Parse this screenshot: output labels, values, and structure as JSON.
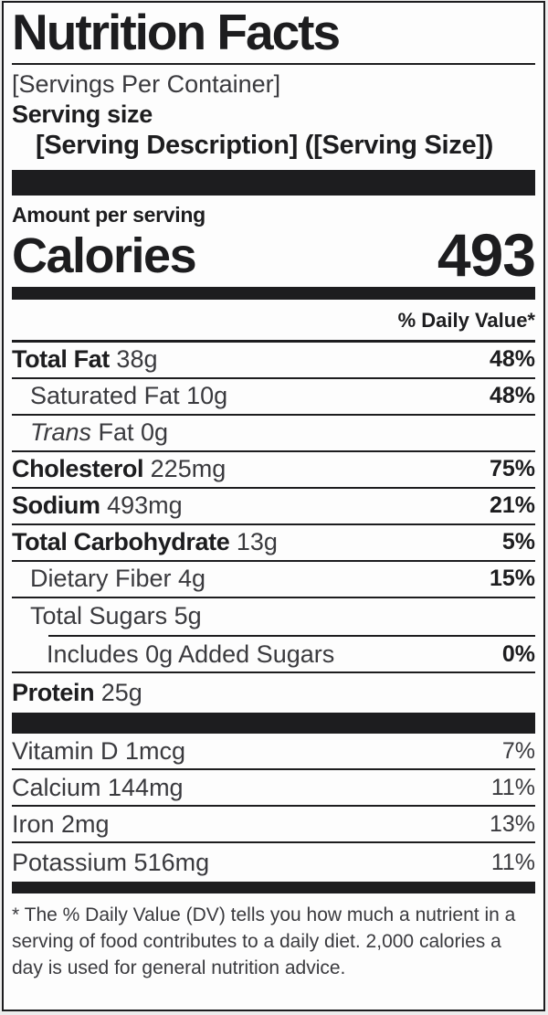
{
  "title": "Nutrition Facts",
  "serving": {
    "per_container": "[Servings Per Container]",
    "size_label": "Serving size",
    "description": "[Serving Description] ([Serving Size])"
  },
  "calories": {
    "section_label": "Amount per serving",
    "label": "Calories",
    "value": "493"
  },
  "daily_value_header": "% Daily Value*",
  "rows_main": [
    {
      "bold": "Total Fat",
      "regular": "38g",
      "dv": "48%",
      "indent": 0,
      "divider": "full"
    },
    {
      "regular": "Saturated Fat 10g",
      "dv": "48%",
      "indent": 1,
      "divider": "full"
    },
    {
      "italic": "Trans",
      "regular": " Fat 0g",
      "dv": "",
      "indent": 1,
      "divider": "full"
    },
    {
      "bold": "Cholesterol",
      "regular": "225mg",
      "dv": "75%",
      "indent": 0,
      "divider": "full"
    },
    {
      "bold": "Sodium",
      "regular": "493mg",
      "dv": "21%",
      "indent": 0,
      "divider": "full"
    },
    {
      "bold": "Total Carbohydrate",
      "regular": "13g",
      "dv": "5%",
      "indent": 0,
      "divider": "full"
    },
    {
      "regular": "Dietary Fiber 4g",
      "dv": "15%",
      "indent": 1,
      "divider": "full"
    },
    {
      "regular": "Total Sugars 5g",
      "dv": "",
      "indent": 1,
      "divider": "indent"
    },
    {
      "regular": "Includes 0g Added Sugars",
      "dv": "0%",
      "indent": 2,
      "divider": "full"
    },
    {
      "bold": "Protein",
      "regular": "25g",
      "dv": "",
      "indent": 0,
      "divider": "none"
    }
  ],
  "rows_micro": [
    {
      "regular": "Vitamin D 1mcg",
      "dv": "7%"
    },
    {
      "regular": "Calcium 144mg",
      "dv": "11%"
    },
    {
      "regular": "Iron 2mg",
      "dv": "13%"
    },
    {
      "regular": "Potassium 516mg",
      "dv": "11%"
    }
  ],
  "footnote": "* The % Daily Value (DV) tells you how much a nutrient in a serving of food contributes to a daily diet. 2,000 calories a day is used for general nutrition advice.",
  "colors": {
    "ink": "#1d1d1f",
    "ink_soft": "#3a3a3e",
    "background": "#fdfdfd"
  }
}
